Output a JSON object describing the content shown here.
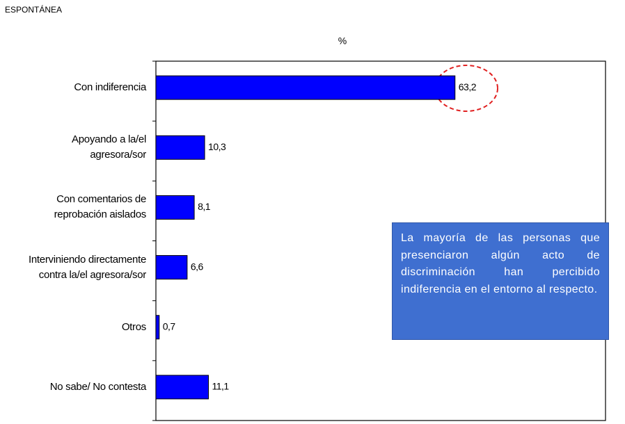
{
  "chart_data": {
    "type": "bar",
    "orientation": "horizontal",
    "title": "ESPONTÁNEA",
    "x_label": "%",
    "categories": [
      "Con indiferencia",
      "Apoyando a la/el\nagresora/sor",
      "Con comentarios de\nreprobación aislados",
      "Interviniendo directamente\ncontra la/el agresora/sor",
      "Otros",
      "No sabe/ No contesta"
    ],
    "values": [
      63.2,
      10.3,
      8.1,
      6.6,
      0.7,
      11.1
    ],
    "value_labels": [
      "63,2",
      "10,3",
      "8,1",
      "6,6",
      "0,7",
      "11,1"
    ],
    "color": "#0000ff",
    "xlim": [
      0,
      95
    ],
    "annotation": "La mayoría de las personas que presenciaron algún acto de discriminación han percibido indiferencia en el entorno al respecto."
  }
}
